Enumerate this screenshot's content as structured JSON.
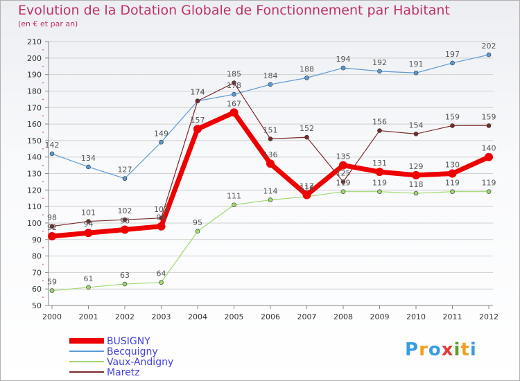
{
  "colors": {
    "title": "#c0306a",
    "legend_text": "#4444dd",
    "axis": "#888888",
    "grid": "#cfcfcf",
    "label": "#555555"
  },
  "logo": {
    "letters": [
      "P",
      "r",
      "o",
      "x",
      "i",
      "t",
      "i"
    ],
    "colors": [
      "#3a9de0",
      "#f0a020",
      "#3a9de0",
      "#e03a3a",
      "#5aa020",
      "#f0a020",
      "#3a9de0"
    ]
  },
  "chart_data": {
    "type": "line",
    "title": "Evolution de la Dotation Globale de Fonctionnement par Habitant",
    "subtitle": "(en € et par an)",
    "xlabel": "",
    "ylabel": "",
    "x": [
      "2000",
      "2001",
      "2002",
      "2003",
      "2004",
      "2005",
      "2006",
      "2007",
      "2008",
      "2009",
      "2010",
      "2011",
      "2012"
    ],
    "ylim": [
      50,
      210
    ],
    "yticks": [
      50,
      60,
      70,
      80,
      90,
      100,
      110,
      120,
      130,
      140,
      150,
      160,
      170,
      180,
      190,
      200,
      210
    ],
    "grid": "horizontal",
    "legend_position": "bottom-left",
    "series": [
      {
        "name": "Becquigny",
        "color": "#5a9ad4",
        "line_width": 1.2,
        "marker": 3,
        "values": [
          142,
          134,
          127,
          149,
          174,
          178,
          184,
          188,
          194,
          192,
          191,
          197,
          202
        ],
        "labels": [
          "142",
          "134",
          "127",
          "149",
          "174",
          "178",
          "184",
          "188",
          "194",
          "192",
          "191",
          "197",
          "202"
        ]
      },
      {
        "name": "Vaux-Andigny",
        "color": "#9fd86e",
        "line_width": 1.2,
        "marker": 3,
        "values": [
          59,
          61,
          63,
          64,
          95,
          111,
          114,
          116,
          119,
          119,
          118,
          119,
          119
        ],
        "labels": [
          "59",
          "61",
          "63",
          "64",
          "95",
          "111",
          "114",
          "116",
          "119",
          "119",
          "118",
          "119",
          "119"
        ]
      },
      {
        "name": "Maretz",
        "color": "#7a2a2a",
        "line_width": 1.2,
        "marker": 3,
        "values": [
          98,
          101,
          102,
          103,
          174,
          185,
          151,
          152,
          125,
          156,
          154,
          159,
          159
        ],
        "labels": [
          "98",
          "101",
          "102",
          "103",
          "174",
          "185",
          "151",
          "152",
          "125",
          "156",
          "154",
          "159",
          "159"
        ]
      },
      {
        "name": "BUSIGNY",
        "color": "#ee0000",
        "line_width": 7,
        "marker": 6,
        "values": [
          92,
          94,
          96,
          98,
          157,
          167,
          136,
          117,
          135,
          131,
          129,
          130,
          140
        ],
        "labels": [
          "92",
          "94",
          "96",
          "98",
          "157",
          "167",
          "136",
          "117",
          "135",
          "131",
          "129",
          "130",
          "140"
        ]
      }
    ],
    "legend_order": [
      "BUSIGNY",
      "Becquigny",
      "Vaux-Andigny",
      "Maretz"
    ]
  }
}
